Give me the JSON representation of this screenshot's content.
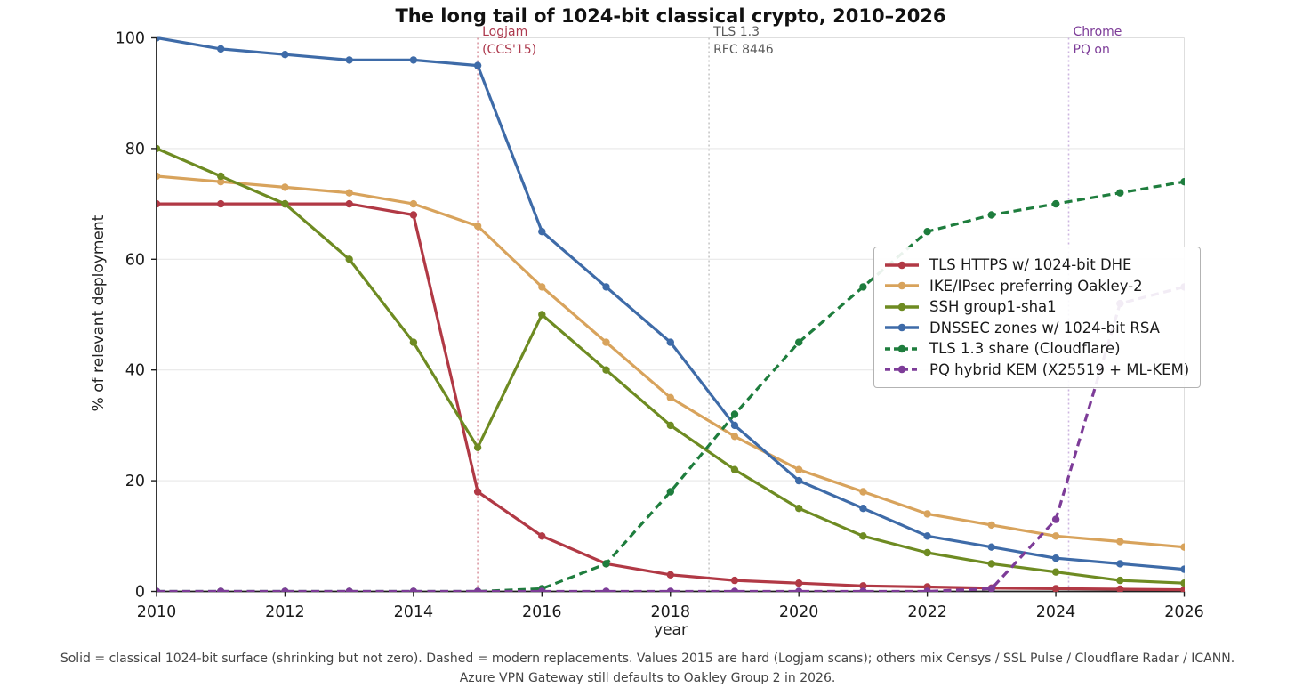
{
  "footer": {
    "line1": "Solid = classical 1024-bit surface (shrinking but not zero). Dashed = modern replacements. Values 2015 are hard (Logjam scans); others mix Censys / SSL Pulse / Cloudflare Radar / ICANN.",
    "line2": "Azure VPN Gateway still defaults to Oakley Group 2 in 2026."
  },
  "chart_data": {
    "type": "line",
    "title": "The long tail of 1024-bit classical crypto, 2010–2026",
    "xlabel": "year",
    "ylabel": "% of relevant deployment",
    "xlim": [
      2010,
      2026
    ],
    "ylim": [
      0,
      100
    ],
    "x_ticks": [
      2010,
      2012,
      2014,
      2016,
      2018,
      2020,
      2022,
      2024,
      2026
    ],
    "y_ticks": [
      0,
      20,
      40,
      60,
      80,
      100
    ],
    "grid": true,
    "legend_position": "center right",
    "x": [
      2010,
      2011,
      2012,
      2013,
      2014,
      2015,
      2016,
      2017,
      2018,
      2019,
      2020,
      2021,
      2022,
      2023,
      2024,
      2025,
      2026
    ],
    "series": [
      {
        "name": "TLS HTTPS w/ 1024-bit DHE",
        "color": "#b13945",
        "style": "solid",
        "values": [
          70,
          70,
          70,
          70,
          68,
          18,
          10,
          5,
          3,
          2,
          1.5,
          1,
          0.8,
          0.6,
          0.5,
          0.4,
          0.3
        ]
      },
      {
        "name": "IKE/IPsec preferring Oakley-2",
        "color": "#d8a35c",
        "style": "solid",
        "values": [
          75,
          74,
          73,
          72,
          70,
          66,
          55,
          45,
          35,
          28,
          22,
          18,
          14,
          12,
          10,
          9,
          8
        ]
      },
      {
        "name": "SSH group1-sha1",
        "color": "#6e8b22",
        "style": "solid",
        "values": [
          80,
          75,
          70,
          60,
          45,
          26,
          50,
          40,
          30,
          22,
          15,
          10,
          7,
          5,
          3.5,
          2,
          1.5
        ]
      },
      {
        "name": "DNSSEC zones w/ 1024-bit RSA",
        "color": "#3e6ba8",
        "style": "solid",
        "values": [
          100,
          98,
          97,
          96,
          96,
          95,
          65,
          55,
          45,
          30,
          20,
          15,
          10,
          8,
          6,
          5,
          4
        ]
      },
      {
        "name": "TLS 1.3 share (Cloudflare)",
        "color": "#1e7d3d",
        "style": "dashed",
        "values": [
          0,
          0,
          0,
          0,
          0,
          0,
          0.5,
          5,
          18,
          32,
          45,
          55,
          65,
          68,
          70,
          72,
          74
        ]
      },
      {
        "name": "PQ hybrid KEM (X25519 + ML-KEM)",
        "color": "#7d3c98",
        "style": "dashed",
        "values": [
          0,
          0,
          0,
          0,
          0,
          0,
          0,
          0,
          0,
          0,
          0,
          0,
          0,
          0.5,
          13,
          52,
          55
        ]
      }
    ],
    "annotations": [
      {
        "line1": "Logjam",
        "line2": "(CCS'15)",
        "x": 2015,
        "text_color": "#ad3a4e",
        "line_color": "#dc9aa4"
      },
      {
        "line1": "TLS 1.3",
        "line2": "RFC 8446",
        "x": 2018.6,
        "text_color": "#5a5a5a",
        "line_color": "#c8c8c8"
      },
      {
        "line1": "Chrome",
        "line2": "PQ on",
        "x": 2024.2,
        "text_color": "#7d3c98",
        "line_color": "#cdb6e0"
      }
    ],
    "style": {
      "grid_color": "#e8e8e8",
      "spine_dark": "#1f1f1f",
      "spine_light": "#dedede",
      "tick_label_color": "#1a1a1a",
      "background": "#ffffff"
    }
  }
}
